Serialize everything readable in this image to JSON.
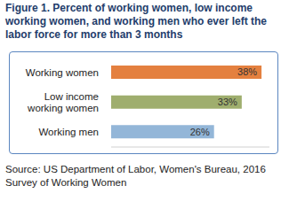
{
  "chart_data": {
    "type": "bar",
    "title": "Figure 1. Percent of working women, low income working women, and working men who ever left the labor force for more than 3 months",
    "categories": [
      "Working women",
      "Low income working women",
      "Working men"
    ],
    "values": [
      38,
      33,
      26
    ],
    "value_labels": [
      "38%",
      "33%",
      "26%"
    ],
    "colors": [
      "#e4803f",
      "#9fae6e",
      "#93b6d8"
    ],
    "xlim": [
      0,
      40
    ],
    "orientation": "horizontal",
    "data_labels": true,
    "tick_labels": "y",
    "source": "Source: US Department of Labor, Women's Bureau, 2016 Survey of Working Women"
  }
}
